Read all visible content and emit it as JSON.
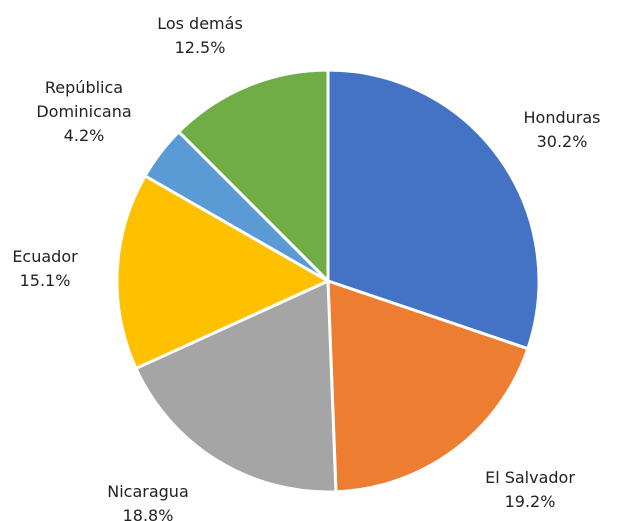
{
  "chart_data": {
    "type": "pie",
    "categories": [
      "Honduras",
      "El Salvador",
      "Nicaragua",
      "Ecuador",
      "República Dominicana",
      "Los demás"
    ],
    "values": [
      30.2,
      19.2,
      18.8,
      15.1,
      4.2,
      12.5
    ],
    "value_labels": [
      "30.2%",
      "19.2%",
      "18.8%",
      "15.1%",
      "4.2%",
      "12.5%"
    ],
    "colors": [
      "#4472c4",
      "#ed7d31",
      "#a5a5a5",
      "#ffc000",
      "#5b9bd5",
      "#70ad47"
    ]
  }
}
